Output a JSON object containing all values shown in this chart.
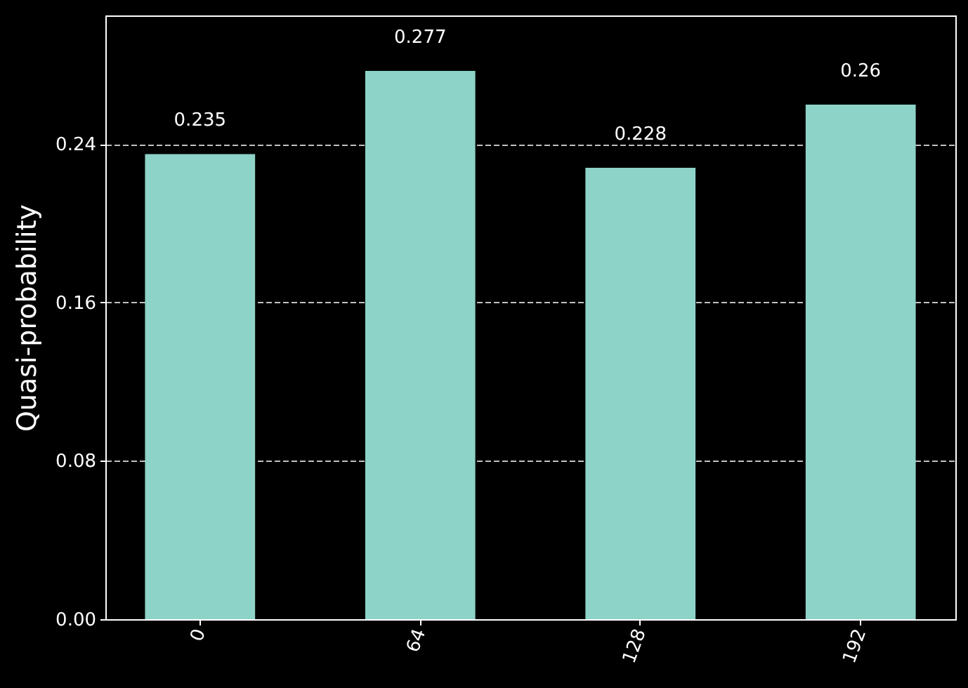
{
  "chart_data": {
    "type": "bar",
    "ylabel": "Quasi-probability",
    "categories": [
      "0",
      "64",
      "128",
      "192"
    ],
    "values": [
      0.235,
      0.277,
      0.228,
      0.26
    ],
    "color": "#8dd3c7",
    "ylim": [
      0,
      0.305
    ],
    "yticks": [
      {
        "value": 0,
        "label": "0.00"
      },
      {
        "value": 0.08,
        "label": "0.08"
      },
      {
        "value": 0.16,
        "label": "0.16"
      },
      {
        "value": 0.24,
        "label": "0.24"
      }
    ],
    "grid": "y",
    "data_labels": true
  }
}
